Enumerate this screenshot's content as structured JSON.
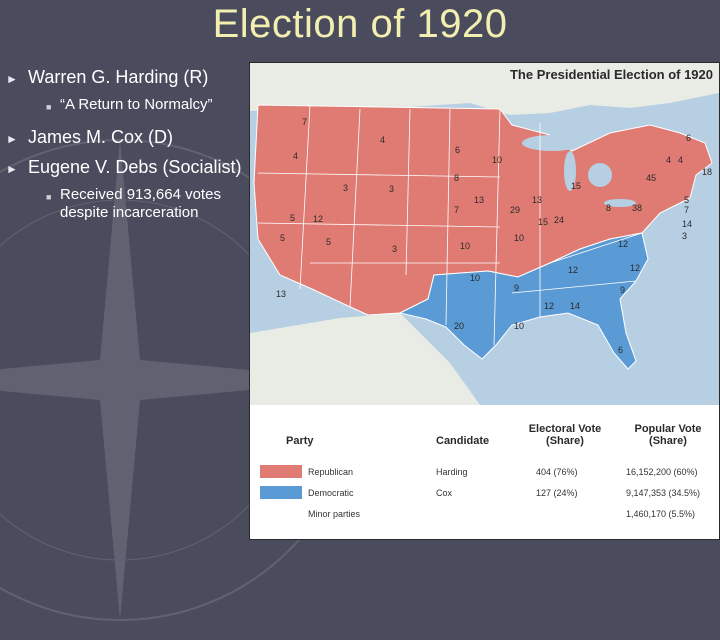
{
  "slide": {
    "title": "Election of 1920",
    "bullets": [
      {
        "text": "Warren G. Harding (R)",
        "sub": [
          "“A Return to Normalcy”"
        ]
      },
      {
        "text": "James M. Cox (D)",
        "sub": []
      },
      {
        "text": "Eugene V. Debs (Socialist)",
        "sub": [
          "Received 913,664 votes despite incarceration"
        ]
      }
    ]
  },
  "colors": {
    "background": "#4a4c5e",
    "title": "#f3efb0",
    "republican": "#e07b73",
    "democratic": "#5b9bd5",
    "water": "#b7cfe3"
  },
  "map": {
    "header": "The Presidential Election of 1920",
    "state_votes": [
      "7",
      "4",
      "4",
      "5",
      "3",
      "3",
      "5",
      "12",
      "5",
      "13",
      "6",
      "10",
      "8",
      "13",
      "7",
      "3",
      "10",
      "10",
      "13",
      "15",
      "29",
      "15",
      "24",
      "12",
      "9",
      "10",
      "12",
      "14",
      "20",
      "10",
      "9",
      "6",
      "12",
      "38",
      "45",
      "8",
      "4",
      "4",
      "6",
      "18",
      "5",
      "7",
      "14",
      "3",
      "12"
    ],
    "legend": {
      "headers": {
        "party": "Party",
        "candidate": "Candidate",
        "electoral": "Electoral Vote (Share)",
        "popular": "Popular Vote (Share)"
      },
      "rows": [
        {
          "party": "Republican",
          "candidate": "Harding",
          "electoral": "404 (76%)",
          "popular": "16,152,200 (60%)",
          "color": "#e07b73"
        },
        {
          "party": "Democratic",
          "candidate": "Cox",
          "electoral": "127 (24%)",
          "popular": "9,147,353 (34.5%)",
          "color": "#5b9bd5"
        },
        {
          "party": "Minor parties",
          "candidate": "",
          "electoral": "",
          "popular": "1,460,170 (5.5%)",
          "color": ""
        }
      ]
    }
  }
}
